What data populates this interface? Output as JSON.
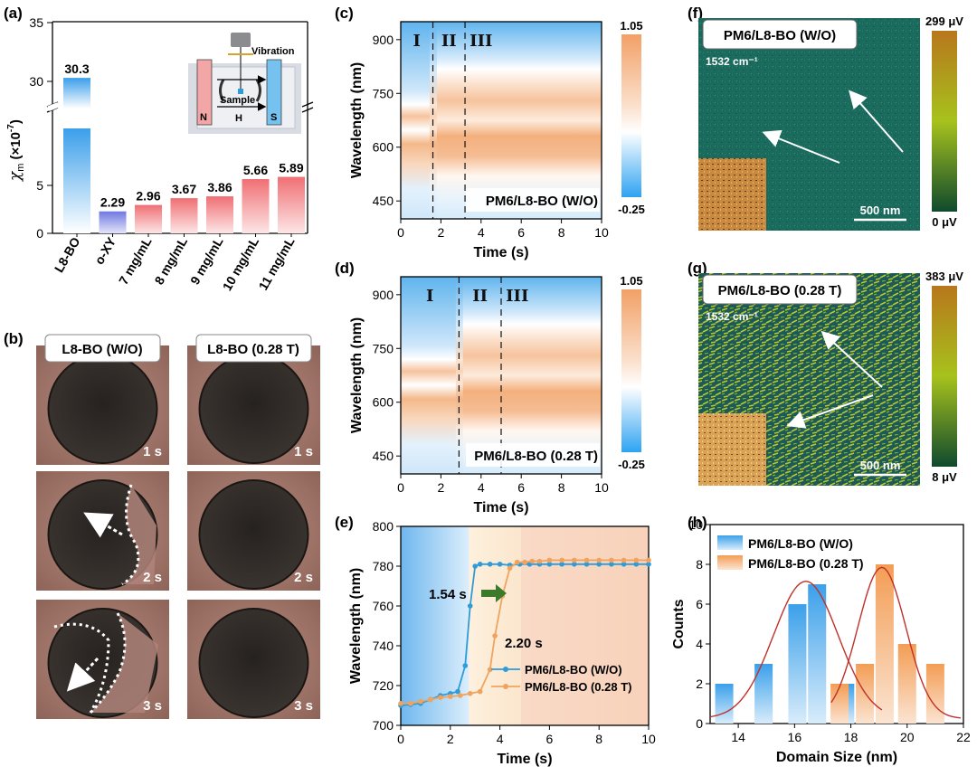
{
  "panels": {
    "a": "(a)",
    "b": "(b)",
    "c": "(c)",
    "d": "(d)",
    "e": "(e)",
    "f": "(f)",
    "g": "(g)",
    "h": "(h)"
  },
  "chart_data": [
    {
      "id": "a",
      "type": "bar",
      "ylabel": "χm (×10-7)",
      "ylabel_main": "χ",
      "ylabel_sub": "m",
      "ylabel_rest": "(×10",
      "ylabel_sup": "-7",
      "ylabel_end": ")",
      "ytick_lower": [
        "0",
        "5"
      ],
      "ytick_upper": [
        "30",
        "35"
      ],
      "categories": [
        "L8-BO",
        "o-XY",
        "7 mg/mL",
        "8 mg/mL",
        "9 mg/mL",
        "10 mg/mL",
        "11 mg/mL"
      ],
      "values": [
        30.3,
        2.29,
        2.96,
        3.67,
        3.86,
        5.66,
        5.89
      ],
      "value_labels": [
        "30.3",
        "2.29",
        "2.96",
        "3.67",
        "3.86",
        "5.66",
        "5.89"
      ],
      "colors": [
        "#3b9fea",
        "#7f86e6",
        "#f4b6b8",
        "#f3a4a7",
        "#f19397",
        "#ef7b80",
        "#ee6a70"
      ],
      "inset": {
        "vibration": "Vibration",
        "sample": "Sample",
        "n": "N",
        "s": "S",
        "h": "H"
      }
    },
    {
      "id": "b",
      "type": "image-grid",
      "headers": [
        "L8-BO (W/O)",
        "L8-BO (0.28 T)"
      ],
      "time_labels": [
        "1 s",
        "2 s",
        "3 s"
      ]
    },
    {
      "id": "c",
      "type": "heatmap",
      "title": "PM6/L8-BO (W/O)",
      "xlabel": "Time (s)",
      "ylabel": "Wavelength (nm)",
      "xticks": [
        "0",
        "2",
        "4",
        "6",
        "8",
        "10"
      ],
      "yticks": [
        "450",
        "600",
        "750",
        "900"
      ],
      "stage_boundaries_s": [
        1.6,
        3.2
      ],
      "stages": [
        "I",
        "II",
        "III"
      ],
      "colorbar": {
        "max": "1.05",
        "min": "-0.25"
      }
    },
    {
      "id": "d",
      "type": "heatmap",
      "title": "PM6/L8-BO (0.28 T)",
      "xlabel": "Time (s)",
      "ylabel": "Wavelength (nm)",
      "xticks": [
        "0",
        "2",
        "4",
        "6",
        "8",
        "10"
      ],
      "yticks": [
        "450",
        "600",
        "750",
        "900"
      ],
      "stage_boundaries_s": [
        2.9,
        5.0
      ],
      "stages": [
        "I",
        "II",
        "III"
      ],
      "colorbar": {
        "max": "1.05",
        "min": "-0.25"
      }
    },
    {
      "id": "e",
      "type": "line",
      "xlabel": "Time (s)",
      "ylabel": "Wavelength (nm)",
      "xlim": [
        0,
        10
      ],
      "ylim": [
        700,
        800
      ],
      "xticks": [
        "0",
        "2",
        "4",
        "6",
        "8",
        "10"
      ],
      "yticks": [
        "700",
        "720",
        "740",
        "760",
        "780",
        "800"
      ],
      "annotations": [
        "1.54 s",
        "2.20 s"
      ],
      "series": [
        {
          "name": "PM6/L8-BO (W/O)",
          "color": "#2f9bd8",
          "x": [
            0.0,
            0.4,
            0.8,
            1.2,
            1.6,
            2.0,
            2.3,
            2.6,
            2.8,
            3.0,
            3.2,
            3.6,
            4.0,
            4.4,
            4.8,
            5.2,
            5.6,
            6.0,
            6.5,
            7.0,
            7.5,
            8.0,
            8.5,
            9.0,
            9.5,
            10.0
          ],
          "y": [
            710,
            710.5,
            711,
            713,
            715,
            716,
            717,
            730,
            760,
            780,
            781,
            781,
            781,
            780.5,
            781,
            781,
            781,
            781,
            781,
            781,
            781,
            781,
            781,
            781,
            781,
            781
          ]
        },
        {
          "name": "PM6/L8-BO (0.28 T)",
          "color": "#f0a35e",
          "x": [
            0.0,
            0.4,
            0.8,
            1.2,
            1.6,
            2.0,
            2.4,
            2.8,
            3.2,
            3.6,
            3.8,
            4.1,
            4.4,
            4.7,
            5.0,
            5.3,
            5.6,
            6.0,
            6.5,
            7.0,
            7.5,
            8.0,
            8.5,
            9.0,
            9.5,
            10.0
          ],
          "y": [
            711,
            711,
            712,
            713,
            714,
            714.5,
            715,
            716,
            717,
            728,
            745,
            765,
            779,
            782,
            782,
            782.5,
            782.5,
            783,
            783,
            783,
            783,
            783,
            783,
            783,
            783,
            783
          ]
        }
      ]
    },
    {
      "id": "f",
      "type": "map",
      "title": "PM6/L8-BO (W/O)",
      "wavenumber": "1532 cm⁻¹",
      "scalebar": "500 nm",
      "colorbar": {
        "max": "299 μV",
        "min": "0 μV"
      }
    },
    {
      "id": "g",
      "type": "map",
      "title": "PM6/L8-BO (0.28 T)",
      "wavenumber": "1532 cm⁻¹",
      "scalebar": "500 nm",
      "colorbar": {
        "max": "383 μV",
        "min": "8 μV"
      }
    },
    {
      "id": "h",
      "type": "bar",
      "xlabel": "Domain Size (nm)",
      "ylabel": "Counts",
      "xlim": [
        13,
        22
      ],
      "ylim": [
        0,
        10
      ],
      "xticks": [
        "14",
        "16",
        "18",
        "20",
        "22"
      ],
      "yticks": [
        "0",
        "2",
        "4",
        "6",
        "8",
        "10"
      ],
      "series": [
        {
          "name": "PM6/L8-BO (W/O)",
          "color": "#3b9fea",
          "x": [
            13.5,
            14.9,
            16.1,
            16.8,
            17.8
          ],
          "values": [
            2,
            3,
            6,
            7,
            2
          ]
        },
        {
          "name": "PM6/L8-BO (0.28 T)",
          "color": "#f5a35e",
          "x": [
            17.6,
            18.5,
            19.2,
            20.0,
            21.0
          ],
          "values": [
            2,
            3,
            8,
            4,
            3
          ]
        }
      ]
    }
  ]
}
